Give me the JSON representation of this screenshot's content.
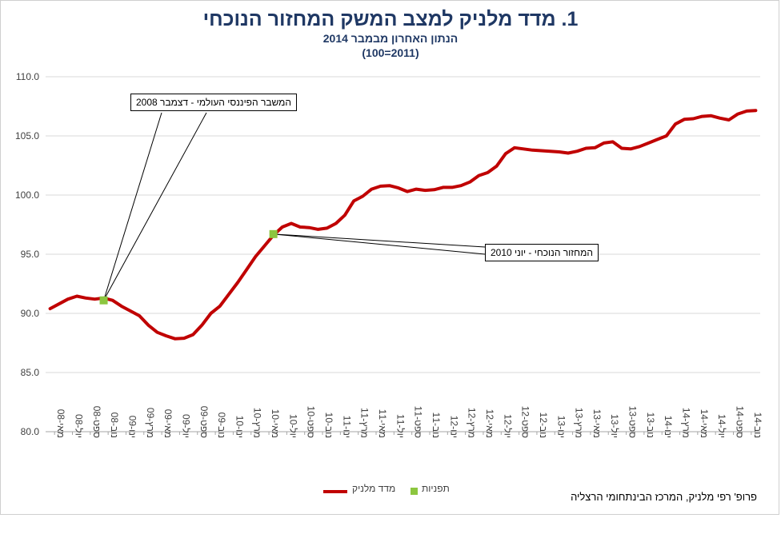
{
  "chart_data": {
    "type": "line",
    "title": "1. מדד מלניק למצב המשק המחזור הנוכחי",
    "subtitle": "הנתון האחרון מבמבר 2014",
    "subtitle2": "(100=2011)",
    "ylim": [
      80,
      110
    ],
    "yticks": [
      "80.0",
      "85.0",
      "90.0",
      "95.0",
      "100.0",
      "105.0",
      "110.0"
    ],
    "grid": true,
    "legend_position": "bottom",
    "xticks": [
      "מאי-08",
      "יול-08",
      "ספט-08",
      "נוב-08",
      "ינו-09",
      "מרץ-09",
      "מאי-09",
      "יול-09",
      "ספט-09",
      "נוב-09",
      "ינו-10",
      "מרץ-10",
      "מאי-10",
      "יול-10",
      "ספט-10",
      "נוב-10",
      "ינו-11",
      "מרץ-11",
      "מאי-11",
      "יול-11",
      "ספט-11",
      "נוב-11",
      "ינו-12",
      "מרץ-12",
      "מאי-12",
      "יול-12",
      "ספט-12",
      "נוב-12",
      "ינו-13",
      "מרץ-13",
      "מאי-13",
      "יול-13",
      "ספט-13",
      "נוב-13",
      "ינו-14",
      "מרץ-14",
      "מאי-14",
      "יול-14",
      "ספט-14",
      "נוב-14"
    ],
    "series": [
      {
        "name": "מדד מלניק",
        "color": "#c00000",
        "values": [
          90.4,
          90.8,
          91.2,
          91.45,
          91.3,
          91.2,
          91.3,
          91.1,
          90.6,
          90.2,
          89.8,
          89.0,
          88.4,
          88.1,
          87.85,
          87.9,
          88.2,
          89.0,
          90.0,
          90.6,
          91.6,
          92.6,
          93.7,
          94.8,
          95.7,
          96.6,
          97.3,
          97.6,
          97.3,
          97.25,
          97.1,
          97.2,
          97.6,
          98.3,
          99.5,
          99.9,
          100.5,
          100.75,
          100.8,
          100.6,
          100.3,
          100.5,
          100.4,
          100.45,
          100.65,
          100.65,
          100.8,
          101.1,
          101.65,
          101.9,
          102.45,
          103.5,
          104.0,
          103.9,
          103.8,
          103.75,
          103.7,
          103.65,
          103.55,
          103.7,
          103.95,
          104.0,
          104.4,
          104.5,
          103.95,
          103.9,
          104.1,
          104.4,
          104.7,
          105.0,
          106.0,
          106.4,
          106.45,
          106.65,
          106.7,
          106.5,
          106.35,
          106.85,
          107.1,
          107.15
        ]
      },
      {
        "name": "תפניות",
        "color": "#8cc63f",
        "points": [
          {
            "index": 6,
            "value": 91.1
          },
          {
            "index": 25,
            "value": 96.7
          }
        ]
      }
    ],
    "annotations": [
      {
        "text": "המשבר הפיננסי העולמי - דצמבר 2008",
        "point_index": 6
      },
      {
        "text": "המחזור הנוכחי - יוני 2010",
        "point_index": 25
      }
    ]
  },
  "legend": {
    "line_label": "מדד מלניק",
    "marker_label": "תפניות"
  },
  "credit": "פרופ' רפי מלניק, המרכז הבינתחומי הרצליה"
}
